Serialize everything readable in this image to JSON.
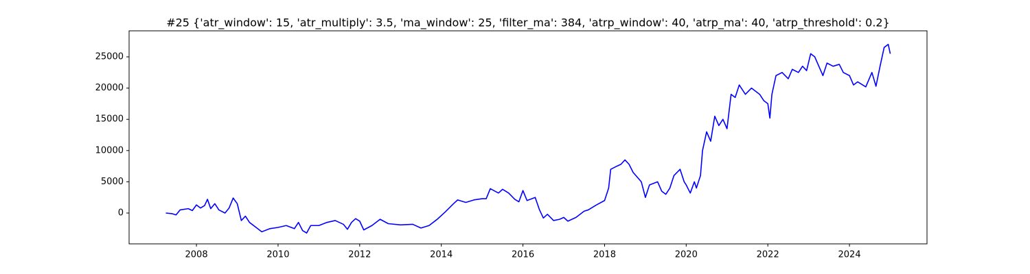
{
  "chart_data": {
    "type": "line",
    "title": "#25 {'atr_window': 15, 'atr_multiply': 3.5, 'ma_window': 25, 'filter_ma': 384, 'atrp_window': 40, 'atrp_ma': 40, 'atrp_threshold': 0.2}",
    "color": "#0000ff",
    "x": [
      2007.25,
      2007.4,
      2007.5,
      2007.6,
      2007.8,
      2007.9,
      2008.0,
      2008.1,
      2008.2,
      2008.27,
      2008.35,
      2008.45,
      2008.55,
      2008.7,
      2008.8,
      2008.9,
      2009.0,
      2009.1,
      2009.2,
      2009.3,
      2009.5,
      2009.6,
      2009.8,
      2010.0,
      2010.2,
      2010.4,
      2010.5,
      2010.6,
      2010.7,
      2010.8,
      2011.0,
      2011.2,
      2011.4,
      2011.6,
      2011.7,
      2011.8,
      2011.9,
      2012.0,
      2012.1,
      2012.3,
      2012.5,
      2012.7,
      2013.0,
      2013.3,
      2013.5,
      2013.7,
      2013.9,
      2014.1,
      2014.3,
      2014.4,
      2014.6,
      2014.8,
      2015.0,
      2015.1,
      2015.2,
      2015.4,
      2015.5,
      2015.65,
      2015.8,
      2015.9,
      2016.0,
      2016.1,
      2016.3,
      2016.4,
      2016.5,
      2016.6,
      2016.75,
      2016.9,
      2017.0,
      2017.1,
      2017.3,
      2017.5,
      2017.6,
      2017.8,
      2018.0,
      2018.1,
      2018.15,
      2018.3,
      2018.4,
      2018.5,
      2018.6,
      2018.7,
      2018.9,
      2019.0,
      2019.1,
      2019.3,
      2019.4,
      2019.5,
      2019.6,
      2019.7,
      2019.85,
      2019.95,
      2020.0,
      2020.1,
      2020.2,
      2020.25,
      2020.35,
      2020.4,
      2020.5,
      2020.6,
      2020.7,
      2020.8,
      2020.9,
      2021.0,
      2021.1,
      2021.2,
      2021.3,
      2021.45,
      2021.6,
      2021.8,
      2021.9,
      2022.0,
      2022.05,
      2022.1,
      2022.2,
      2022.35,
      2022.5,
      2022.6,
      2022.75,
      2022.85,
      2022.95,
      2023.05,
      2023.15,
      2023.25,
      2023.35,
      2023.45,
      2023.6,
      2023.75,
      2023.85,
      2024.0,
      2024.1,
      2024.2,
      2024.4,
      2024.55,
      2024.65,
      2024.75,
      2024.85,
      2024.95,
      2025.0
    ],
    "values": [
      0,
      -100,
      -300,
      500,
      700,
      400,
      1300,
      800,
      1200,
      2200,
      700,
      1500,
      500,
      0,
      800,
      2400,
      1500,
      -1200,
      -500,
      -1500,
      -2500,
      -3000,
      -2500,
      -2300,
      -2000,
      -2500,
      -1500,
      -2800,
      -3200,
      -2000,
      -2000,
      -1500,
      -1200,
      -1800,
      -2600,
      -1500,
      -900,
      -1300,
      -2700,
      -2000,
      -1000,
      -1700,
      -1900,
      -1800,
      -2400,
      -2000,
      -1000,
      200,
      1500,
      2100,
      1700,
      2100,
      2300,
      2300,
      3900,
      3200,
      3800,
      3200,
      2200,
      1800,
      3600,
      2000,
      2500,
      600,
      -800,
      -200,
      -1200,
      -1000,
      -700,
      -1300,
      -700,
      300,
      500,
      1300,
      2000,
      4000,
      7000,
      7500,
      7800,
      8500,
      7800,
      6500,
      5000,
      2500,
      4500,
      5000,
      3500,
      3000,
      4000,
      6000,
      7000,
      5000,
      4500,
      3200,
      5000,
      4000,
      6000,
      10000,
      13000,
      11500,
      15500,
      14000,
      15000,
      13500,
      19000,
      18500,
      20500,
      19000,
      20000,
      19000,
      18000,
      17500,
      15200,
      19000,
      22000,
      22500,
      21500,
      23000,
      22500,
      23500,
      22800,
      25500,
      25000,
      23500,
      22000,
      24000,
      23500,
      23800,
      22500,
      22000,
      20500,
      21000,
      20200,
      22500,
      20300,
      23500,
      26500,
      27000,
      25500
    ],
    "xlim": [
      2006.35,
      2025.9
    ],
    "ylim": [
      -4934,
      29167
    ],
    "xticks": [
      2008,
      2010,
      2012,
      2014,
      2016,
      2018,
      2020,
      2022,
      2024
    ],
    "yticks": [
      0,
      5000,
      10000,
      15000,
      20000,
      25000
    ]
  }
}
